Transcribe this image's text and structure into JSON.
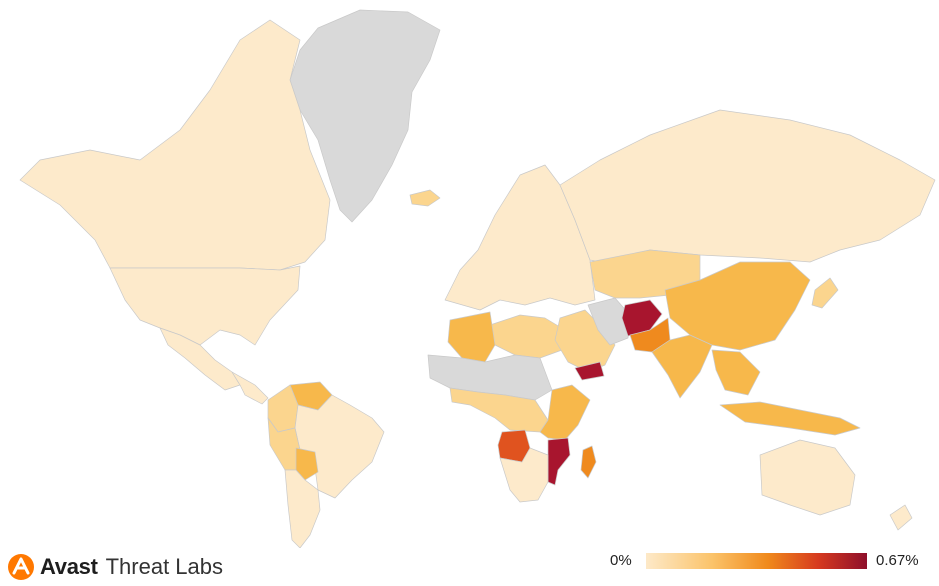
{
  "brand": {
    "name": "Avast",
    "product": "Threat Labs"
  },
  "legend": {
    "min_label": "0%",
    "max_label": "0.67%"
  },
  "colors": {
    "no_data": "#d9d9d9",
    "very_low": "#fdeacb",
    "low": "#fbd58e",
    "medium": "#f7b84b",
    "high": "#ef8a1e",
    "very_high": "#e0531f",
    "highest": "#a8152e",
    "background": "#ffffff"
  },
  "regions": [
    {
      "id": "greenland",
      "level": "no_data"
    },
    {
      "id": "canada",
      "level": "very_low"
    },
    {
      "id": "usa",
      "level": "very_low"
    },
    {
      "id": "mexico",
      "level": "very_low"
    },
    {
      "id": "central-america",
      "level": "very_low"
    },
    {
      "id": "venezuela",
      "level": "medium"
    },
    {
      "id": "colombia",
      "level": "low"
    },
    {
      "id": "peru",
      "level": "low"
    },
    {
      "id": "brazil",
      "level": "very_low"
    },
    {
      "id": "bolivia",
      "level": "medium"
    },
    {
      "id": "argentina-chile",
      "level": "very_low"
    },
    {
      "id": "europe",
      "level": "very_low"
    },
    {
      "id": "russia",
      "level": "very_low"
    },
    {
      "id": "north-africa",
      "level": "low"
    },
    {
      "id": "algeria",
      "level": "medium"
    },
    {
      "id": "sahel",
      "level": "no_data"
    },
    {
      "id": "central-africa",
      "level": "low"
    },
    {
      "id": "angola",
      "level": "very_high"
    },
    {
      "id": "east-africa",
      "level": "medium"
    },
    {
      "id": "mozambique",
      "level": "highest"
    },
    {
      "id": "madagascar",
      "level": "high"
    },
    {
      "id": "southern-africa",
      "level": "very_low"
    },
    {
      "id": "middle-east",
      "level": "low"
    },
    {
      "id": "yemen",
      "level": "highest"
    },
    {
      "id": "iran",
      "level": "no_data"
    },
    {
      "id": "afghanistan",
      "level": "highest"
    },
    {
      "id": "pakistan",
      "level": "high"
    },
    {
      "id": "india",
      "level": "medium"
    },
    {
      "id": "central-asia",
      "level": "low"
    },
    {
      "id": "china",
      "level": "medium"
    },
    {
      "id": "southeast-asia",
      "level": "medium"
    },
    {
      "id": "indonesia",
      "level": "medium"
    },
    {
      "id": "japan",
      "level": "low"
    },
    {
      "id": "australia",
      "level": "very_low"
    },
    {
      "id": "new-zealand",
      "level": "very_low"
    },
    {
      "id": "iceland",
      "level": "low"
    }
  ]
}
